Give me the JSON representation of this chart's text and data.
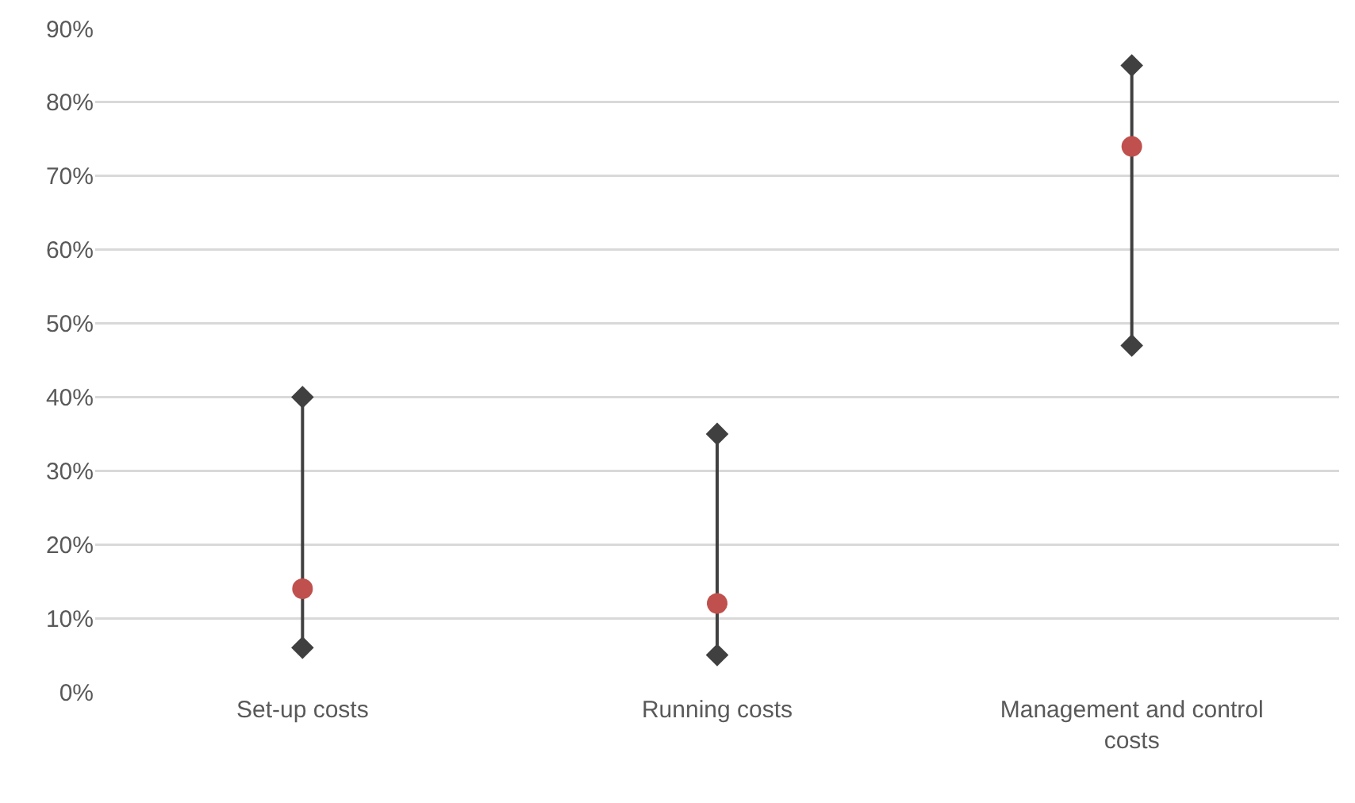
{
  "chart_data": {
    "type": "scatter",
    "categories": [
      "Set-up costs",
      "Running costs",
      "Management and control costs"
    ],
    "series": [
      {
        "type": "line",
        "color": "#404040",
        "marker": "diamond",
        "x": [
          "Set-up costs",
          "Set-up costs"
        ],
        "values": [
          6,
          40
        ]
      },
      {
        "type": "line",
        "color": "#404040",
        "marker": "diamond",
        "x": [
          "Running costs",
          "Running costs"
        ],
        "values": [
          5,
          35
        ]
      },
      {
        "type": "line",
        "color": "#404040",
        "marker": "diamond",
        "x": [
          "Management and control costs",
          "Management and control costs"
        ],
        "values": [
          47,
          85
        ]
      },
      {
        "color": "#c0504d",
        "marker": "circle",
        "values": [
          14,
          12,
          74
        ]
      }
    ],
    "ylim": [
      0,
      90
    ],
    "yticks": [
      {
        "value": 0,
        "label": "0%"
      },
      {
        "value": 10,
        "label": "10%"
      },
      {
        "value": 20,
        "label": "20%"
      },
      {
        "value": 30,
        "label": "30%"
      },
      {
        "value": 40,
        "label": "40%"
      },
      {
        "value": 50,
        "label": "50%"
      },
      {
        "value": 60,
        "label": "60%"
      },
      {
        "value": 70,
        "label": "70%"
      },
      {
        "value": 80,
        "label": "80%"
      },
      {
        "value": 90,
        "label": "90%"
      }
    ],
    "grid": "y"
  }
}
